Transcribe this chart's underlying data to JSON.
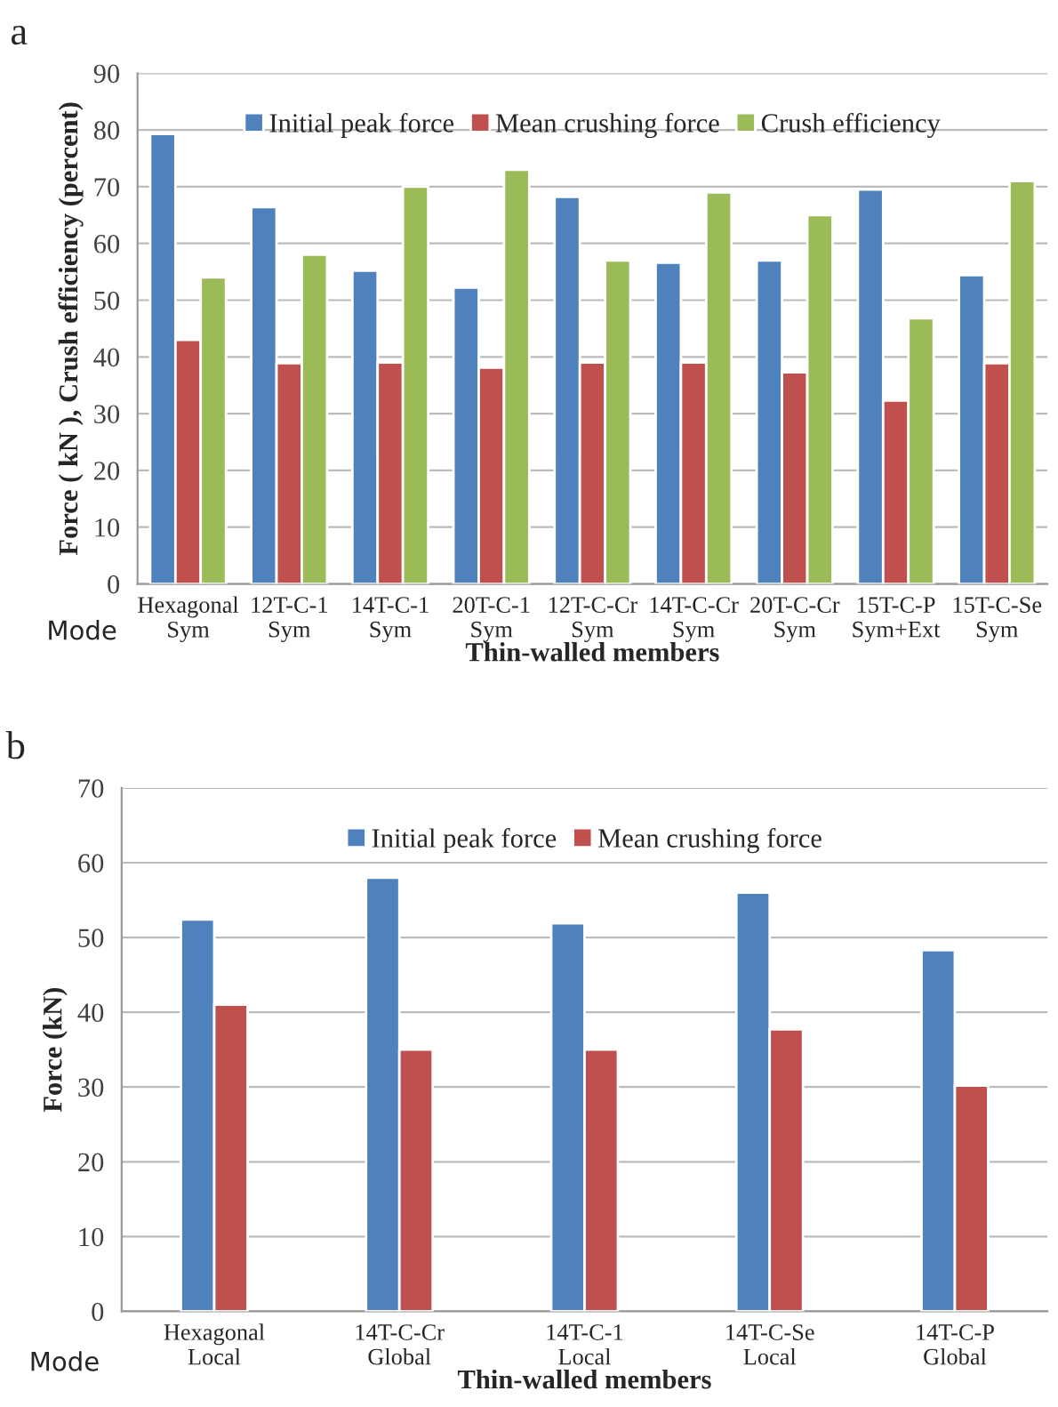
{
  "chart_data": [
    {
      "type": "bar",
      "title": "a",
      "xlabel": "Thin-walled members",
      "ylabel": "Force ( kN ), Crush efficiency (percent)",
      "categories": [
        "Hexagonal\nSym",
        "12T-C-1\nSym",
        "14T-C-1\nSym",
        "20T-C-1\nSym",
        "12T-C-Cr\nSym",
        "14T-C-Cr\nSym",
        "20T-C-Cr\nSym",
        "15T-C-P\nSym+Ext",
        "15T-C-Se\nSym"
      ],
      "series": [
        {
          "name": "Initial peak force",
          "color": "#4f81bd",
          "values": [
            79.3,
            66.4,
            55.2,
            52.2,
            68.2,
            56.6,
            57.0,
            69.5,
            54.4
          ]
        },
        {
          "name": "Mean crushing force",
          "color": "#c0504d",
          "values": [
            43.0,
            38.9,
            39.0,
            38.1,
            39.0,
            39.0,
            37.3,
            32.3,
            38.9
          ]
        },
        {
          "name": "Crush efficiency",
          "color": "#9bbb59",
          "values": [
            54.0,
            58.0,
            70.0,
            73.0,
            57.0,
            69.0,
            65.0,
            46.8,
            71.0
          ]
        }
      ],
      "ylim": [
        0,
        90
      ],
      "yticks": [
        0,
        10,
        20,
        30,
        40,
        50,
        60,
        70,
        80,
        90
      ],
      "grid": "y",
      "legend": "top",
      "annotations": [
        "Mode"
      ]
    },
    {
      "type": "bar",
      "title": "b",
      "xlabel": "Thin-walled members",
      "ylabel": "Force (kN)",
      "categories": [
        "Hexagonal\nLocal",
        "14T-C-Cr\nGlobal",
        "14T-C-1\nLocal",
        "14T-C-Se\nLocal",
        "14T-C-P\nGlobal"
      ],
      "series": [
        {
          "name": "Initial peak force",
          "color": "#4f81bd",
          "values": [
            52.4,
            58.0,
            51.9,
            56.0,
            48.3
          ]
        },
        {
          "name": "Mean crushing force",
          "color": "#c0504d",
          "values": [
            41.0,
            35.0,
            35.0,
            37.7,
            30.2
          ]
        }
      ],
      "ylim": [
        0,
        70
      ],
      "yticks": [
        0,
        10,
        20,
        30,
        40,
        50,
        60,
        70
      ],
      "grid": "y",
      "legend": "top",
      "annotations": [
        "Mode"
      ]
    }
  ]
}
